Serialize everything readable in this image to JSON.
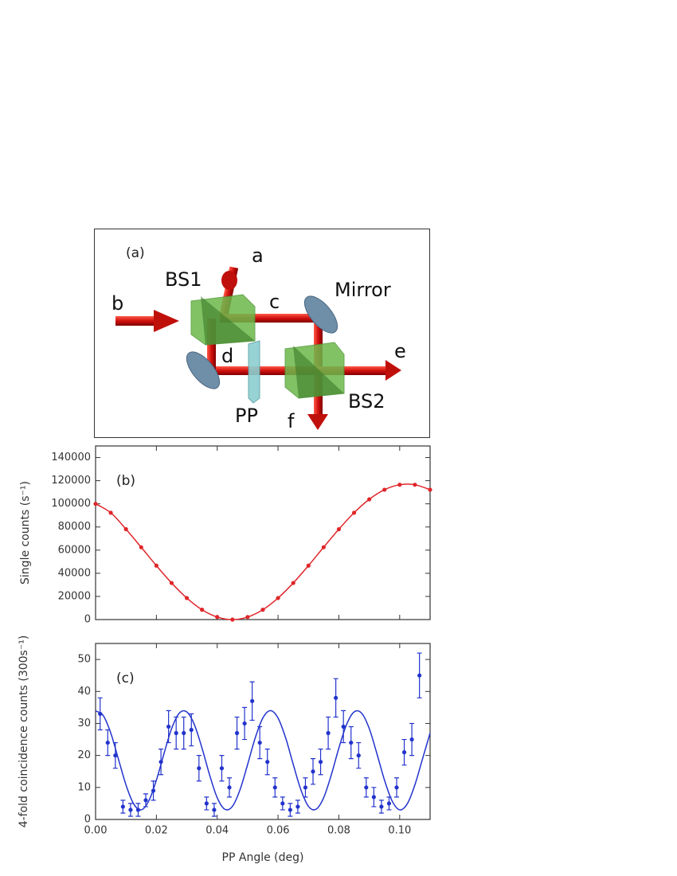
{
  "diagram": {
    "panel_label": "(a)",
    "labels": {
      "a": "a",
      "b": "b",
      "c": "c",
      "d": "d",
      "e": "e",
      "f": "f",
      "bs1": "BS1",
      "bs2": "BS2",
      "mirror": "Mirror",
      "pp": "PP"
    }
  },
  "chart_data": [
    {
      "type": "line",
      "annotation": "(b)",
      "ylabel": "Single counts (s⁻¹)",
      "xlim": [
        0,
        0.11
      ],
      "xticks": [
        0,
        0.02,
        0.04,
        0.06,
        0.08,
        0.1
      ],
      "xtick_labels": false,
      "ylim": [
        0,
        150000
      ],
      "yticks": [
        0,
        20000,
        40000,
        60000,
        80000,
        100000,
        120000,
        140000
      ],
      "series": [
        {
          "color": "#e0262a",
          "markers": true,
          "line": true,
          "x": [
            0,
            0.005,
            0.01,
            0.015,
            0.02,
            0.025,
            0.03,
            0.035,
            0.04,
            0.045,
            0.05,
            0.055,
            0.06,
            0.065,
            0.07,
            0.075,
            0.08,
            0.085,
            0.09,
            0.095,
            0.1,
            0.105,
            0.11
          ],
          "values": [
            100000,
            92300,
            78100,
            62500,
            46600,
            31600,
            18600,
            8500,
            2200,
            0,
            2200,
            8500,
            18600,
            31600,
            46600,
            62500,
            78100,
            92300,
            103900,
            112200,
            116500,
            116500,
            112200
          ]
        }
      ]
    },
    {
      "type": "errorbar",
      "annotation": "(c)",
      "ylabel": "4-fold coincidence counts (300s⁻¹)",
      "xlabel": "PP Angle (deg)",
      "xlim": [
        0,
        0.11
      ],
      "xticks": [
        {
          "value": 0,
          "label": "0.00"
        },
        {
          "value": 0.02,
          "label": "0.02"
        },
        {
          "value": 0.04,
          "label": "0.04"
        },
        {
          "value": 0.06,
          "label": "0.06"
        },
        {
          "value": 0.08,
          "label": "0.08"
        },
        {
          "value": 0.1,
          "label": "0.10"
        }
      ],
      "xtick_labels": true,
      "ylim": [
        0,
        55
      ],
      "yticks": [
        0,
        10,
        20,
        30,
        40,
        50
      ],
      "series": [
        {
          "color": "#2233cc",
          "markers": true,
          "line": false,
          "x": [
            0.0015,
            0.004,
            0.0065,
            0.009,
            0.0115,
            0.014,
            0.0165,
            0.019,
            0.0215,
            0.024,
            0.0265,
            0.029,
            0.0315,
            0.034,
            0.0365,
            0.039,
            0.0415,
            0.044,
            0.0465,
            0.049,
            0.0515,
            0.054,
            0.0565,
            0.059,
            0.0615,
            0.064,
            0.0665,
            0.069,
            0.0715,
            0.074,
            0.0765,
            0.079,
            0.0815,
            0.084,
            0.0865,
            0.089,
            0.0915,
            0.094,
            0.0965,
            0.099,
            0.1015,
            0.104,
            0.1065
          ],
          "values": [
            33,
            24,
            20,
            4,
            3,
            3,
            6,
            9,
            18,
            29,
            27,
            27,
            28,
            16,
            5,
            3,
            16,
            10,
            27,
            30,
            37,
            24,
            18,
            10,
            5,
            3,
            4,
            10,
            15,
            18,
            27,
            38,
            29,
            24,
            20,
            10,
            7,
            4,
            5,
            10,
            21,
            25,
            45
          ],
          "errors": [
            5,
            4,
            4,
            2,
            2,
            2,
            2,
            3,
            4,
            5,
            5,
            5,
            5,
            4,
            2,
            2,
            4,
            3,
            5,
            5,
            6,
            5,
            4,
            3,
            2,
            2,
            2,
            3,
            4,
            4,
            5,
            6,
            5,
            5,
            4,
            3,
            3,
            2,
            2,
            3,
            4,
            5,
            7
          ]
        },
        {
          "color": "#2233cc",
          "markers": false,
          "line": true,
          "x": [
            0,
            0.0025,
            0.005,
            0.0075,
            0.01,
            0.0125,
            0.015,
            0.0175,
            0.02,
            0.0225,
            0.025,
            0.0275,
            0.03,
            0.0325,
            0.035,
            0.0375,
            0.04,
            0.0425,
            0.045,
            0.0475,
            0.05,
            0.0525,
            0.055,
            0.0575,
            0.06,
            0.0625,
            0.065,
            0.0675,
            0.07,
            0.0725,
            0.075,
            0.0775,
            0.08,
            0.0825,
            0.085,
            0.0875,
            0.09,
            0.0925,
            0.095,
            0.0975,
            0.1,
            0.1025,
            0.105,
            0.1075,
            0.11
          ],
          "values": [
            33.9,
            32.5,
            27.0,
            18.9,
            10.8,
            4.9,
            3.0,
            5.8,
            12.3,
            20.6,
            28.4,
            33.2,
            33.6,
            29.6,
            22.3,
            13.9,
            6.8,
            3.2,
            4.1,
            9.3,
            17.2,
            25.5,
            31.7,
            34.0,
            31.7,
            25.5,
            17.2,
            9.3,
            4.1,
            3.2,
            6.8,
            13.9,
            22.3,
            29.6,
            33.6,
            33.2,
            28.4,
            20.6,
            12.3,
            5.8,
            3.0,
            4.9,
            10.8,
            18.9,
            27.0
          ]
        }
      ]
    }
  ]
}
